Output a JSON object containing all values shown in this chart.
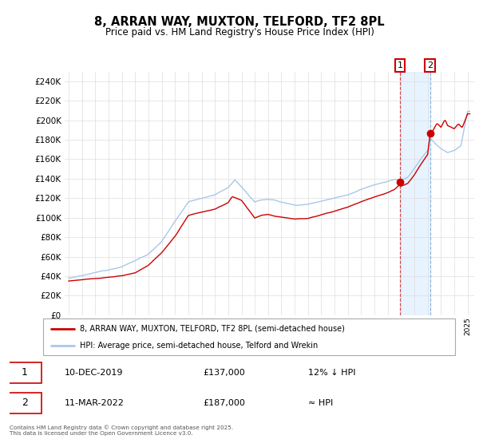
{
  "title": "8, ARRAN WAY, MUXTON, TELFORD, TF2 8PL",
  "subtitle": "Price paid vs. HM Land Registry's House Price Index (HPI)",
  "legend_line1": "8, ARRAN WAY, MUXTON, TELFORD, TF2 8PL (semi-detached house)",
  "legend_line2": "HPI: Average price, semi-detached house, Telford and Wrekin",
  "footnote": "Contains HM Land Registry data © Crown copyright and database right 2025.\nThis data is licensed under the Open Government Licence v3.0.",
  "annotation1_label": "1",
  "annotation1_date": "10-DEC-2019",
  "annotation1_price": "£137,000",
  "annotation1_hpi": "12% ↓ HPI",
  "annotation2_label": "2",
  "annotation2_date": "11-MAR-2022",
  "annotation2_price": "£187,000",
  "annotation2_hpi": "≈ HPI",
  "sale1_year": 2019.92,
  "sale1_value": 137000,
  "sale2_year": 2022.17,
  "sale2_value": 187000,
  "hpi_color": "#a8c8e8",
  "price_color": "#cc0000",
  "annotation_box_color": "#cc0000",
  "shade_color": "#ddeeff",
  "ylim_min": 0,
  "ylim_max": 250000,
  "ytick_max": 240000,
  "ytick_step": 20000,
  "background_color": "#ffffff",
  "plot_bg_color": "#ffffff",
  "grid_color": "#dddddd"
}
